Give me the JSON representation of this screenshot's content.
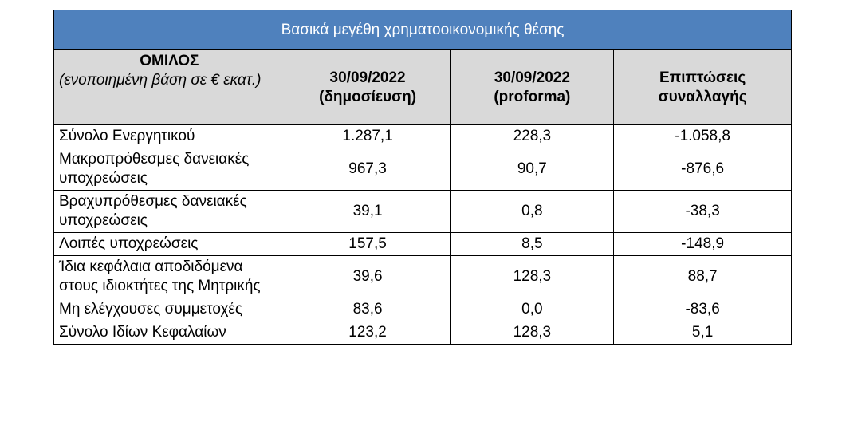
{
  "header": {
    "title": "Βασικά μεγέθη χρηματοοικονομικής θέσης"
  },
  "table": {
    "columns": [
      {
        "title": "ΟΜΙΛΟΣ",
        "subtitle": "(ενοποιημένη βάση σε € εκατ.)"
      },
      {
        "title": "30/09/2022",
        "subtitle": "(δημοσίευση)"
      },
      {
        "title": "30/09/2022",
        "subtitle": "(proforma)"
      },
      {
        "title": "Επιπτώσεις",
        "subtitle": "συναλλαγής"
      }
    ],
    "rows": [
      [
        "Σύνολο Ενεργητικού",
        "1.287,1",
        "228,3",
        "-1.058,8"
      ],
      [
        "Μακροπρόθεσμες δανειακές υποχρεώσεις",
        "967,3",
        "90,7",
        "-876,6"
      ],
      [
        "Βραχυπρόθεσμες δανειακές υποχρεώσεις",
        "39,1",
        "0,8",
        "-38,3"
      ],
      [
        "Λοιπές υποχρεώσεις",
        "157,5",
        "8,5",
        "-148,9"
      ],
      [
        "Ίδια κεφάλαια αποδιδόμενα στους ιδιοκτήτες της Μητρικής",
        "39,6",
        "128,3",
        "88,7"
      ],
      [
        "Μη ελέγχουσες συμμετοχές",
        "83,6",
        "0,0",
        "-83,6"
      ],
      [
        "Σύνολο Ιδίων Κεφαλαίων",
        "123,2",
        "128,3",
        "5,1"
      ]
    ]
  }
}
